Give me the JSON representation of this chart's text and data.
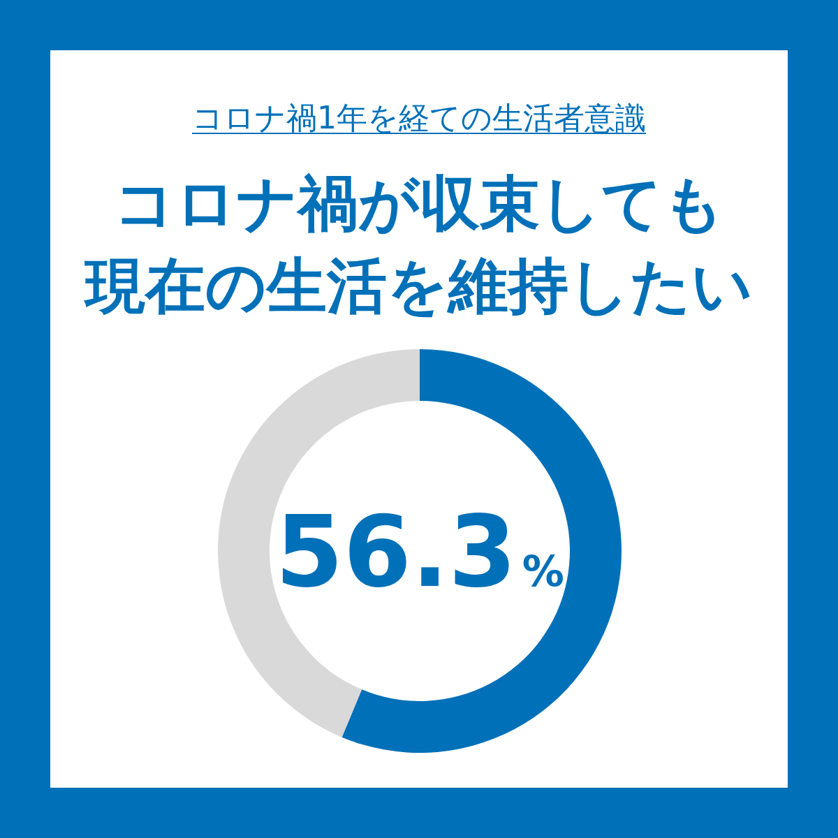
{
  "chart_data": {
    "type": "donut",
    "title": "コロナ禍1年を経ての生活者意識",
    "subtitle": "コロナ禍が収束しても現在の生活を維持したい",
    "categories": [
      null,
      null
    ],
    "values": [
      56.3,
      43.7
    ],
    "colors": [
      "#0070b8",
      "#d9d9d9"
    ],
    "value_labels": [
      "56.3%",
      null
    ]
  }
}
